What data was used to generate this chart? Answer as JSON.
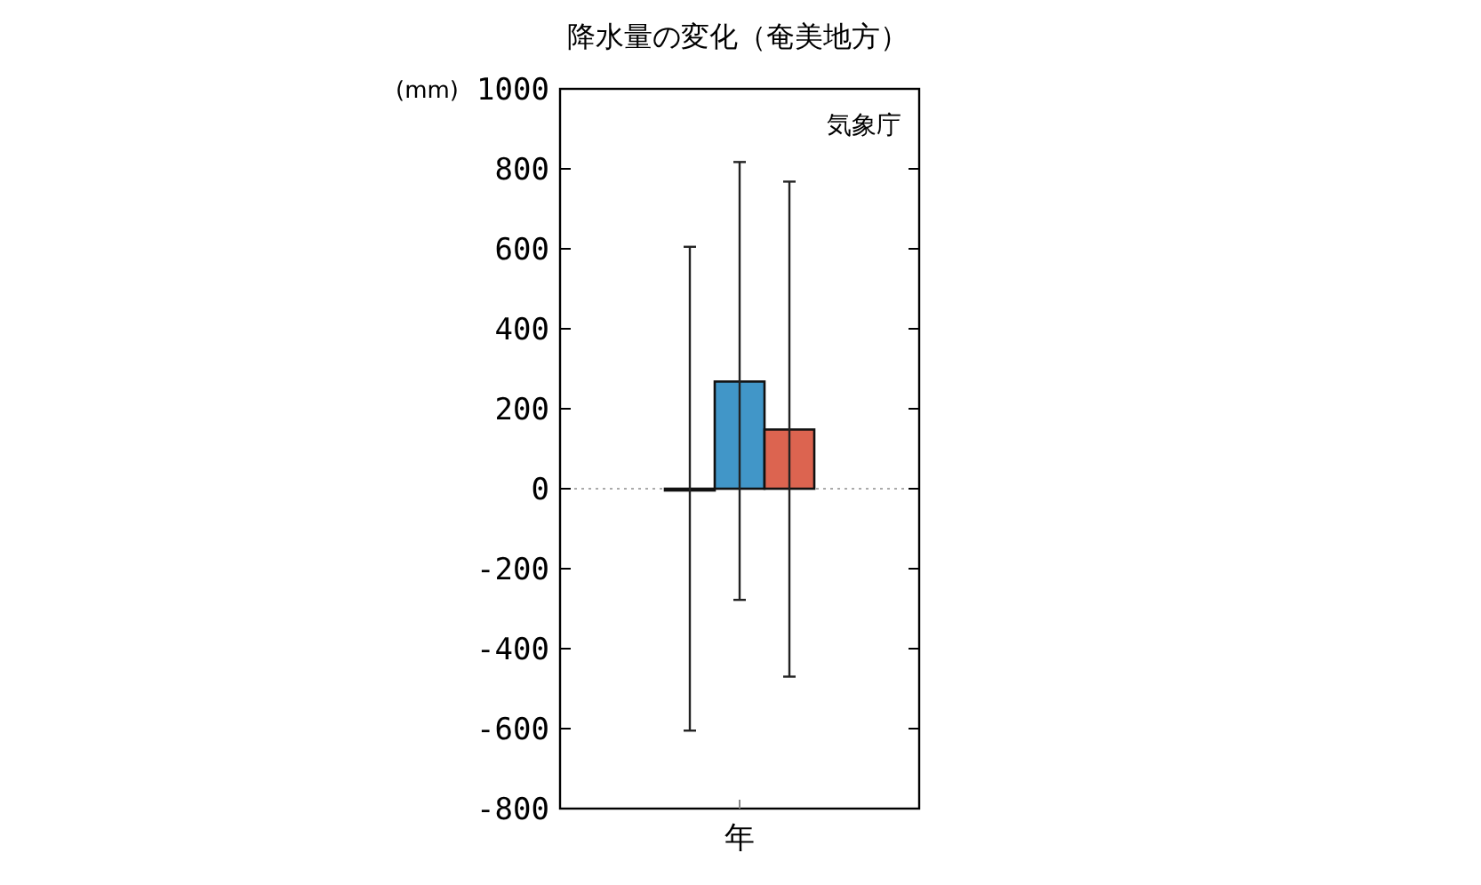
{
  "chart_data": {
    "type": "bar",
    "title": "降水量の変化（奄美地方）",
    "ylabel": "(mm)",
    "categories": [
      "年"
    ],
    "series": [
      {
        "color": "#9e9e9e",
        "values": [
          0
        ],
        "errors": [
          [
            -605,
            605
          ]
        ]
      },
      {
        "color": "#4196c8",
        "values": [
          268
        ],
        "errors": [
          [
            -278,
            817
          ]
        ]
      },
      {
        "color": "#dc6450",
        "values": [
          148
        ],
        "errors": [
          [
            -470,
            768
          ]
        ]
      }
    ],
    "ylim": [
      -800,
      1000
    ],
    "yticks": [
      -800,
      -600,
      -400,
      -200,
      0,
      200,
      400,
      600,
      800,
      1000
    ],
    "ref_lines": [
      {
        "axis": "y",
        "value": 0,
        "color": "#aaaaaa",
        "line_style": "dotted"
      }
    ],
    "annotations": [
      "気象庁"
    ],
    "grid": false
  }
}
